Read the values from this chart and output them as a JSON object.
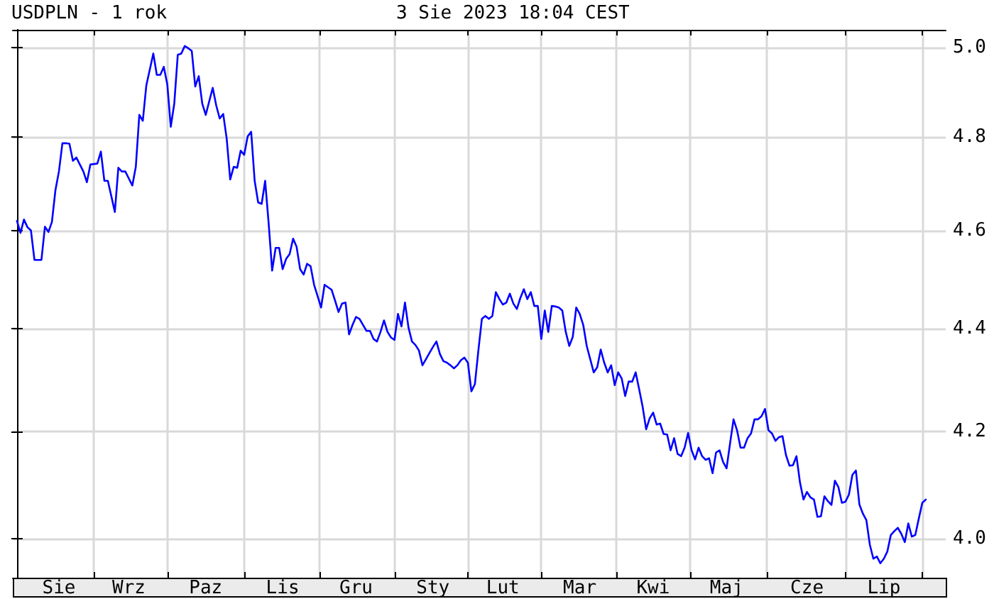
{
  "chart_data": {
    "type": "line",
    "title": "USDPLN - 1 rok",
    "subtitle": "3 Sie 2023 18:04 CEST",
    "categories": [
      null,
      null,
      null,
      null,
      null,
      null,
      null,
      null,
      null,
      null,
      null,
      null,
      "Sie",
      null,
      null,
      null,
      null,
      null,
      null,
      null,
      null,
      null,
      null,
      null,
      null,
      null,
      null,
      null,
      null,
      null,
      null,
      null,
      "Wrz",
      null,
      null,
      null,
      null,
      null,
      null,
      null,
      null,
      null,
      null,
      null,
      null,
      null,
      null,
      null,
      null,
      null,
      null,
      null,
      null,
      null,
      "Paz",
      null,
      null,
      null,
      null,
      null,
      null,
      null,
      null,
      null,
      null,
      null,
      null,
      null,
      null,
      null,
      null,
      null,
      null,
      null,
      null,
      null,
      "Lis",
      null,
      null,
      null,
      null,
      null,
      null,
      null,
      null,
      null,
      null,
      null,
      null,
      null,
      null,
      null,
      null,
      null,
      null,
      null,
      null,
      "Gru",
      null,
      null,
      null,
      null,
      null,
      null,
      null,
      null,
      null,
      null,
      null,
      null,
      null,
      null,
      null,
      null,
      null,
      null,
      null,
      null,
      null,
      "Sty",
      null,
      null,
      null,
      null,
      null,
      null,
      null,
      null,
      null,
      null,
      null,
      null,
      null,
      null,
      null,
      null,
      null,
      null,
      null,
      "Lut",
      null,
      null,
      null,
      null,
      null,
      null,
      null,
      null,
      null,
      null,
      null,
      null,
      null,
      null,
      null,
      null,
      null,
      null,
      null,
      null,
      null,
      "Mar",
      null,
      null,
      null,
      null,
      null,
      null,
      null,
      null,
      null,
      null,
      null,
      null,
      null,
      null,
      null,
      null,
      null,
      null,
      null,
      null,
      "Kwi",
      null,
      null,
      null,
      null,
      null,
      null,
      null,
      null,
      null,
      null,
      null,
      null,
      null,
      null,
      null,
      null,
      null,
      null,
      null,
      null,
      "Maj",
      null,
      null,
      null,
      null,
      null,
      null,
      null,
      null,
      null,
      null,
      null,
      null,
      null,
      null,
      null,
      null,
      null,
      null,
      null,
      null,
      null,
      null,
      "Cze",
      null,
      null,
      null,
      null,
      null,
      null,
      null,
      null,
      null,
      null,
      null,
      null,
      null,
      null,
      null,
      null,
      null,
      null,
      null,
      null,
      null,
      "Lip",
      null,
      null,
      null,
      null,
      null,
      null,
      null,
      null,
      null,
      null,
      null,
      null
    ],
    "series": [
      {
        "color": "#0000ff",
        "values": [
          4.621,
          4.596,
          4.624,
          4.608,
          4.601,
          4.54,
          4.54,
          4.54,
          4.609,
          4.598,
          4.619,
          4.686,
          4.726,
          4.787,
          4.787,
          4.786,
          4.749,
          4.756,
          4.741,
          4.726,
          4.703,
          4.741,
          4.742,
          4.743,
          4.769,
          4.706,
          4.706,
          4.673,
          4.64,
          4.734,
          4.726,
          4.726,
          4.711,
          4.696,
          4.736,
          4.849,
          4.836,
          4.914,
          4.95,
          4.986,
          4.938,
          4.938,
          4.956,
          4.917,
          4.823,
          4.874,
          4.983,
          4.986,
          5.003,
          4.998,
          4.992,
          4.912,
          4.935,
          4.874,
          4.849,
          4.879,
          4.909,
          4.87,
          4.841,
          4.851,
          4.797,
          4.709,
          4.736,
          4.734,
          4.771,
          4.762,
          4.802,
          4.812,
          4.706,
          4.66,
          4.657,
          4.706,
          4.616,
          4.518,
          4.565,
          4.565,
          4.521,
          4.542,
          4.552,
          4.584,
          4.567,
          4.521,
          4.51,
          4.532,
          4.527,
          4.489,
          4.466,
          4.443,
          4.489,
          4.484,
          4.479,
          4.457,
          4.434,
          4.451,
          4.453,
          4.389,
          4.408,
          4.424,
          4.42,
          4.408,
          4.396,
          4.396,
          4.38,
          4.375,
          4.394,
          4.417,
          4.394,
          4.383,
          4.378,
          4.43,
          4.405,
          4.453,
          4.403,
          4.375,
          4.368,
          4.357,
          4.328,
          4.34,
          4.352,
          4.364,
          4.375,
          4.35,
          4.336,
          4.333,
          4.328,
          4.322,
          4.328,
          4.338,
          4.343,
          4.333,
          4.277,
          4.291,
          4.357,
          4.42,
          4.426,
          4.42,
          4.426,
          4.474,
          4.46,
          4.449,
          4.453,
          4.471,
          4.451,
          4.44,
          4.462,
          4.48,
          4.46,
          4.474,
          4.446,
          4.446,
          4.38,
          4.437,
          4.394,
          4.446,
          4.445,
          4.443,
          4.437,
          4.394,
          4.366,
          4.384,
          4.443,
          4.43,
          4.408,
          4.366,
          4.34,
          4.314,
          4.324,
          4.359,
          4.333,
          4.314,
          4.328,
          4.289,
          4.314,
          4.302,
          4.268,
          4.296,
          4.296,
          4.314,
          4.281,
          4.247,
          4.204,
          4.225,
          4.236,
          4.213,
          4.215,
          4.195,
          4.194,
          4.164,
          4.187,
          4.157,
          4.153,
          4.169,
          4.197,
          4.164,
          4.147,
          4.169,
          4.153,
          4.146,
          4.149,
          4.121,
          4.16,
          4.164,
          4.142,
          4.13,
          4.177,
          4.223,
          4.202,
          4.169,
          4.169,
          4.187,
          4.196,
          4.223,
          4.223,
          4.229,
          4.243,
          4.202,
          4.196,
          4.182,
          4.189,
          4.191,
          4.155,
          4.135,
          4.136,
          4.153,
          4.104,
          4.072,
          4.086,
          4.076,
          4.072,
          4.04,
          4.041,
          4.078,
          4.069,
          4.062,
          4.107,
          4.095,
          4.066,
          4.068,
          4.081,
          4.118,
          4.126,
          4.063,
          4.046,
          4.034,
          3.989,
          3.964,
          3.968,
          3.956,
          3.964,
          3.977,
          4.007,
          4.014,
          4.02,
          4.009,
          3.994,
          4.028,
          4.004,
          4.007,
          4.037,
          4.066,
          4.072
        ]
      }
    ],
    "ylim": [
      3.93,
      5.04
    ],
    "yticks": [
      {
        "value": 4,
        "label": "4.0"
      },
      {
        "value": 4.2,
        "label": "4.2"
      },
      {
        "value": 4.4,
        "label": "4.4"
      },
      {
        "value": 4.6,
        "label": "4.6"
      },
      {
        "value": 4.8,
        "label": "4.8"
      },
      {
        "value": 5,
        "label": "5.0"
      }
    ],
    "log": true,
    "grid": true
  }
}
